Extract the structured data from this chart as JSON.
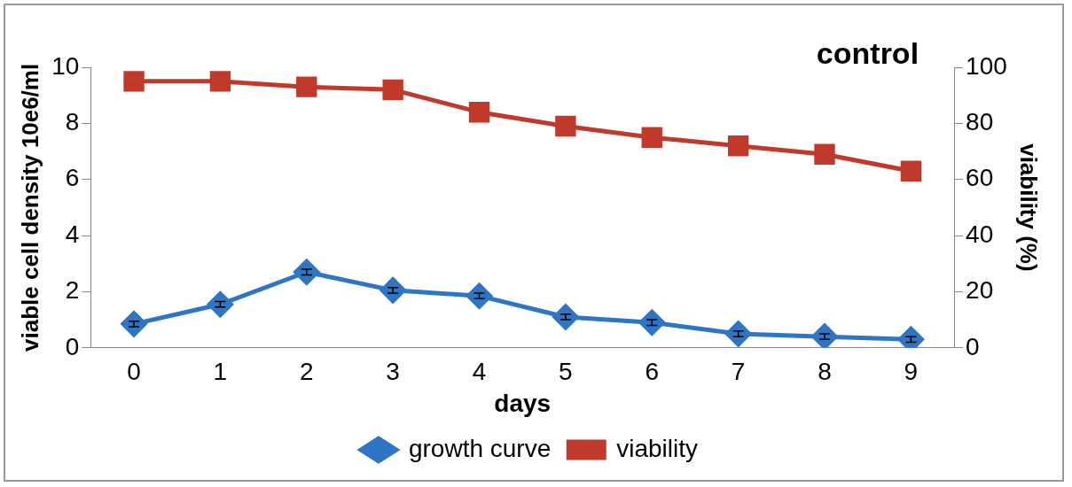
{
  "chart_data": {
    "type": "line",
    "title": "control",
    "xlabel": "days",
    "ylabel": "viable cell density 10e6/ml",
    "y2label": "viability (%)",
    "categories": [
      "0",
      "1",
      "2",
      "3",
      "4",
      "5",
      "6",
      "7",
      "8",
      "9"
    ],
    "series": [
      {
        "name": "growth curve",
        "color": "#2e75c6",
        "marker": "diamond",
        "values": [
          0.85,
          1.55,
          2.7,
          2.05,
          1.85,
          1.1,
          0.9,
          0.5,
          0.4,
          0.3
        ],
        "errors": [
          0.1,
          0.1,
          0.1,
          0.1,
          0.1,
          0.1,
          0.1,
          0.1,
          0.1,
          0.1
        ]
      },
      {
        "name": "viability",
        "color": "#c0392b",
        "marker": "square",
        "axis": "y2",
        "values": [
          95,
          95,
          93,
          92,
          84,
          79,
          75,
          72,
          69,
          63
        ]
      }
    ],
    "ylim": [
      0,
      10
    ],
    "yticks": [
      0,
      2,
      4,
      6,
      8,
      10
    ],
    "y2lim": [
      0,
      100
    ],
    "y2ticks": [
      0,
      20,
      40,
      60,
      80,
      100
    ],
    "grid": false,
    "legend": "bottom"
  }
}
